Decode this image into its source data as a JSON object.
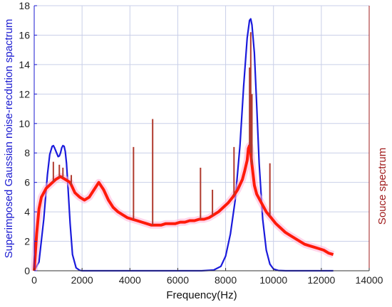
{
  "chart_data": {
    "type": "line",
    "xlabel": "Frequency(Hz)",
    "ylabel_left": "Superimposed Gaussian noise-recdution spactrum",
    "ylabel_right": "Souce spectrum",
    "xlim": [
      0,
      14000
    ],
    "ylim": [
      0,
      18
    ],
    "x_ticks": [
      "0",
      "2000",
      "4000",
      "6000",
      "8000",
      "10000",
      "12000",
      "14000"
    ],
    "y_ticks": [
      "0",
      "2",
      "4",
      "6",
      "8",
      "10",
      "12",
      "14",
      "16",
      "18"
    ],
    "grid": true,
    "colors": {
      "gaussian": "#1a1adc",
      "source": "#ff1a0a",
      "source_peaks": "#b03a2e",
      "left_axis": "#1a1ad0",
      "right_axis": "#a01c1c",
      "grid": "#c9cfe8"
    },
    "series": [
      {
        "key": "gaussian",
        "x": [
          0,
          200,
          400,
          550,
          650,
          750,
          800,
          850,
          950,
          1000,
          1050,
          1100,
          1150,
          1200,
          1250,
          1300,
          1350,
          1400,
          1500,
          1600,
          1750,
          1900,
          2000,
          2300,
          7000,
          7500,
          7800,
          8000,
          8200,
          8400,
          8600,
          8750,
          8900,
          9000,
          9050,
          9100,
          9200,
          9300,
          9400,
          9550,
          9700,
          9850,
          10000,
          10200,
          10500,
          12500
        ],
        "values": [
          0,
          0.6,
          3.5,
          6.5,
          7.9,
          8.45,
          8.5,
          8.35,
          7.95,
          7.75,
          7.8,
          8.0,
          8.35,
          8.5,
          8.45,
          8.1,
          7.3,
          6.0,
          3.2,
          1.1,
          0.2,
          0.03,
          0,
          0,
          0,
          0.05,
          0.3,
          1.0,
          2.5,
          4.8,
          8.5,
          12.5,
          15.8,
          17.0,
          17.1,
          16.7,
          14.8,
          11.2,
          7.3,
          3.5,
          1.4,
          0.45,
          0.12,
          0.02,
          0,
          0
        ]
      },
      {
        "key": "source",
        "x": [
          0,
          100,
          200,
          300,
          500,
          700,
          900,
          1100,
          1300,
          1500,
          1700,
          1900,
          2100,
          2300,
          2500,
          2700,
          2900,
          3100,
          3300,
          3500,
          3700,
          3900,
          4100,
          4300,
          4500,
          4700,
          4900,
          5100,
          5300,
          5500,
          5700,
          5900,
          6100,
          6300,
          6500,
          6700,
          6900,
          7100,
          7300,
          7500,
          7700,
          7900,
          8100,
          8300,
          8500,
          8700,
          8800,
          8900,
          8950,
          9000,
          9050,
          9100,
          9150,
          9200,
          9300,
          9500,
          9700,
          9900,
          10100,
          10300,
          10500,
          10700,
          10900,
          11100,
          11300,
          11500,
          11700,
          11900,
          12100,
          12300,
          12500
        ],
        "values": [
          0,
          2.5,
          4.2,
          5.0,
          5.6,
          5.9,
          6.2,
          6.4,
          6.2,
          6.0,
          5.3,
          5.0,
          4.8,
          5.0,
          5.5,
          6.0,
          5.5,
          4.8,
          4.3,
          4.0,
          3.8,
          3.6,
          3.5,
          3.4,
          3.3,
          3.2,
          3.1,
          3.1,
          3.1,
          3.2,
          3.2,
          3.2,
          3.3,
          3.3,
          3.4,
          3.4,
          3.5,
          3.5,
          3.6,
          3.8,
          4.0,
          4.3,
          4.6,
          5.0,
          5.5,
          6.2,
          6.8,
          7.5,
          8.3,
          8.5,
          8.0,
          7.2,
          6.5,
          5.8,
          5.2,
          4.6,
          4.0,
          3.6,
          3.2,
          2.9,
          2.6,
          2.4,
          2.2,
          2.0,
          1.8,
          1.7,
          1.6,
          1.5,
          1.4,
          1.2,
          1.1
        ]
      }
    ],
    "source_spikes": [
      {
        "x": 800,
        "y": 7.4
      },
      {
        "x": 1050,
        "y": 7.2
      },
      {
        "x": 1200,
        "y": 7.0
      },
      {
        "x": 1550,
        "y": 6.5
      },
      {
        "x": 4150,
        "y": 8.4
      },
      {
        "x": 4950,
        "y": 10.3
      },
      {
        "x": 6950,
        "y": 7.0
      },
      {
        "x": 7450,
        "y": 5.5
      },
      {
        "x": 8350,
        "y": 8.4
      },
      {
        "x": 9000,
        "y": 13.8
      },
      {
        "x": 9050,
        "y": 16.2
      },
      {
        "x": 9100,
        "y": 12.0
      },
      {
        "x": 9850,
        "y": 7.3
      }
    ]
  }
}
